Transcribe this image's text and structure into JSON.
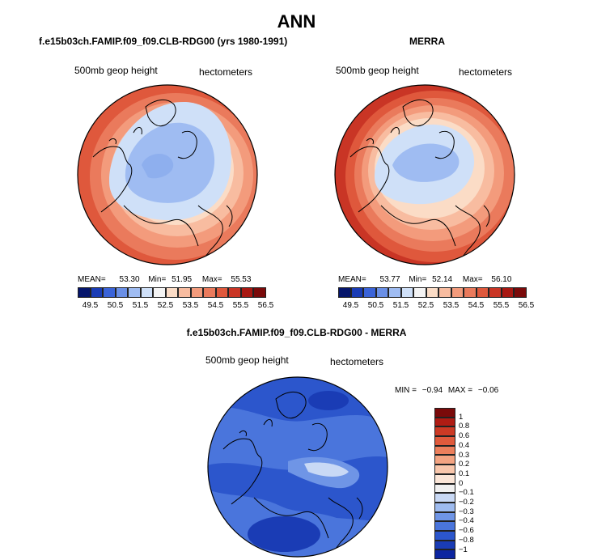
{
  "main_title": "ANN",
  "chart_data": [
    {
      "type": "heatmap",
      "projection": "north-polar-stereographic",
      "title": "f.e15b03ch.FAMIP.f09_f09.CLB-RDG00 (yrs 1980-1991)",
      "left_label": "500mb geop height",
      "right_label": "hectometers",
      "stats": {
        "mean_label": "MEAN=",
        "mean": "53.30",
        "min_label": "Min=",
        "min": "51.95",
        "max_label": "Max=",
        "max": "55.53"
      },
      "levels": [
        "49.5",
        "50.5",
        "51.5",
        "52.5",
        "53.5",
        "54.5",
        "55.5",
        "56.5"
      ],
      "colors": [
        "#05156b",
        "#1a3cb5",
        "#3a63d8",
        "#6a8fe6",
        "#9fbcf2",
        "#cfe0f8",
        "#f4f4f4",
        "#fbdcc6",
        "#f8bca0",
        "#f39b7c",
        "#ea7a5c",
        "#df583c",
        "#c93525",
        "#a81812",
        "#7a0a0a"
      ]
    },
    {
      "type": "heatmap",
      "projection": "north-polar-stereographic",
      "title": "MERRA",
      "left_label": "500mb geop height",
      "right_label": "hectometers",
      "stats": {
        "mean_label": "MEAN=",
        "mean": "53.77",
        "min_label": "Min=",
        "min": "52.14",
        "max_label": "Max=",
        "max": "56.10"
      },
      "levels": [
        "49.5",
        "50.5",
        "51.5",
        "52.5",
        "53.5",
        "54.5",
        "55.5",
        "56.5"
      ],
      "colors": [
        "#05156b",
        "#1a3cb5",
        "#3a63d8",
        "#6a8fe6",
        "#9fbcf2",
        "#cfe0f8",
        "#f4f4f4",
        "#fbdcc6",
        "#f8bca0",
        "#f39b7c",
        "#ea7a5c",
        "#df583c",
        "#c93525",
        "#a81812",
        "#7a0a0a"
      ]
    },
    {
      "type": "heatmap",
      "projection": "north-polar-stereographic",
      "title": "f.e15b03ch.FAMIP.f09_f09.CLB-RDG00 - MERRA",
      "left_label": "500mb geop height",
      "right_label": "hectometers",
      "stats": {
        "min_label": "MIN =",
        "min": "−0.94",
        "max_label": "MAX =",
        "max": "−0.06"
      },
      "levels": [
        "1",
        "0.8",
        "0.6",
        "0.4",
        "0.3",
        "0.2",
        "0.1",
        "0",
        "−0.1",
        "−0.2",
        "−0.3",
        "−0.4",
        "−0.6",
        "−0.8",
        "−1"
      ],
      "colors": [
        "#7a0a0a",
        "#b01c14",
        "#cc3a25",
        "#e05a3c",
        "#ec7f5c",
        "#f4a482",
        "#f9c7ac",
        "#fbe6d8",
        "#f1f1f1",
        "#c9d9f5",
        "#9ebbef",
        "#6f95e6",
        "#4a75dc",
        "#2c56cc",
        "#1a3cb5",
        "#0c25a0"
      ]
    }
  ]
}
